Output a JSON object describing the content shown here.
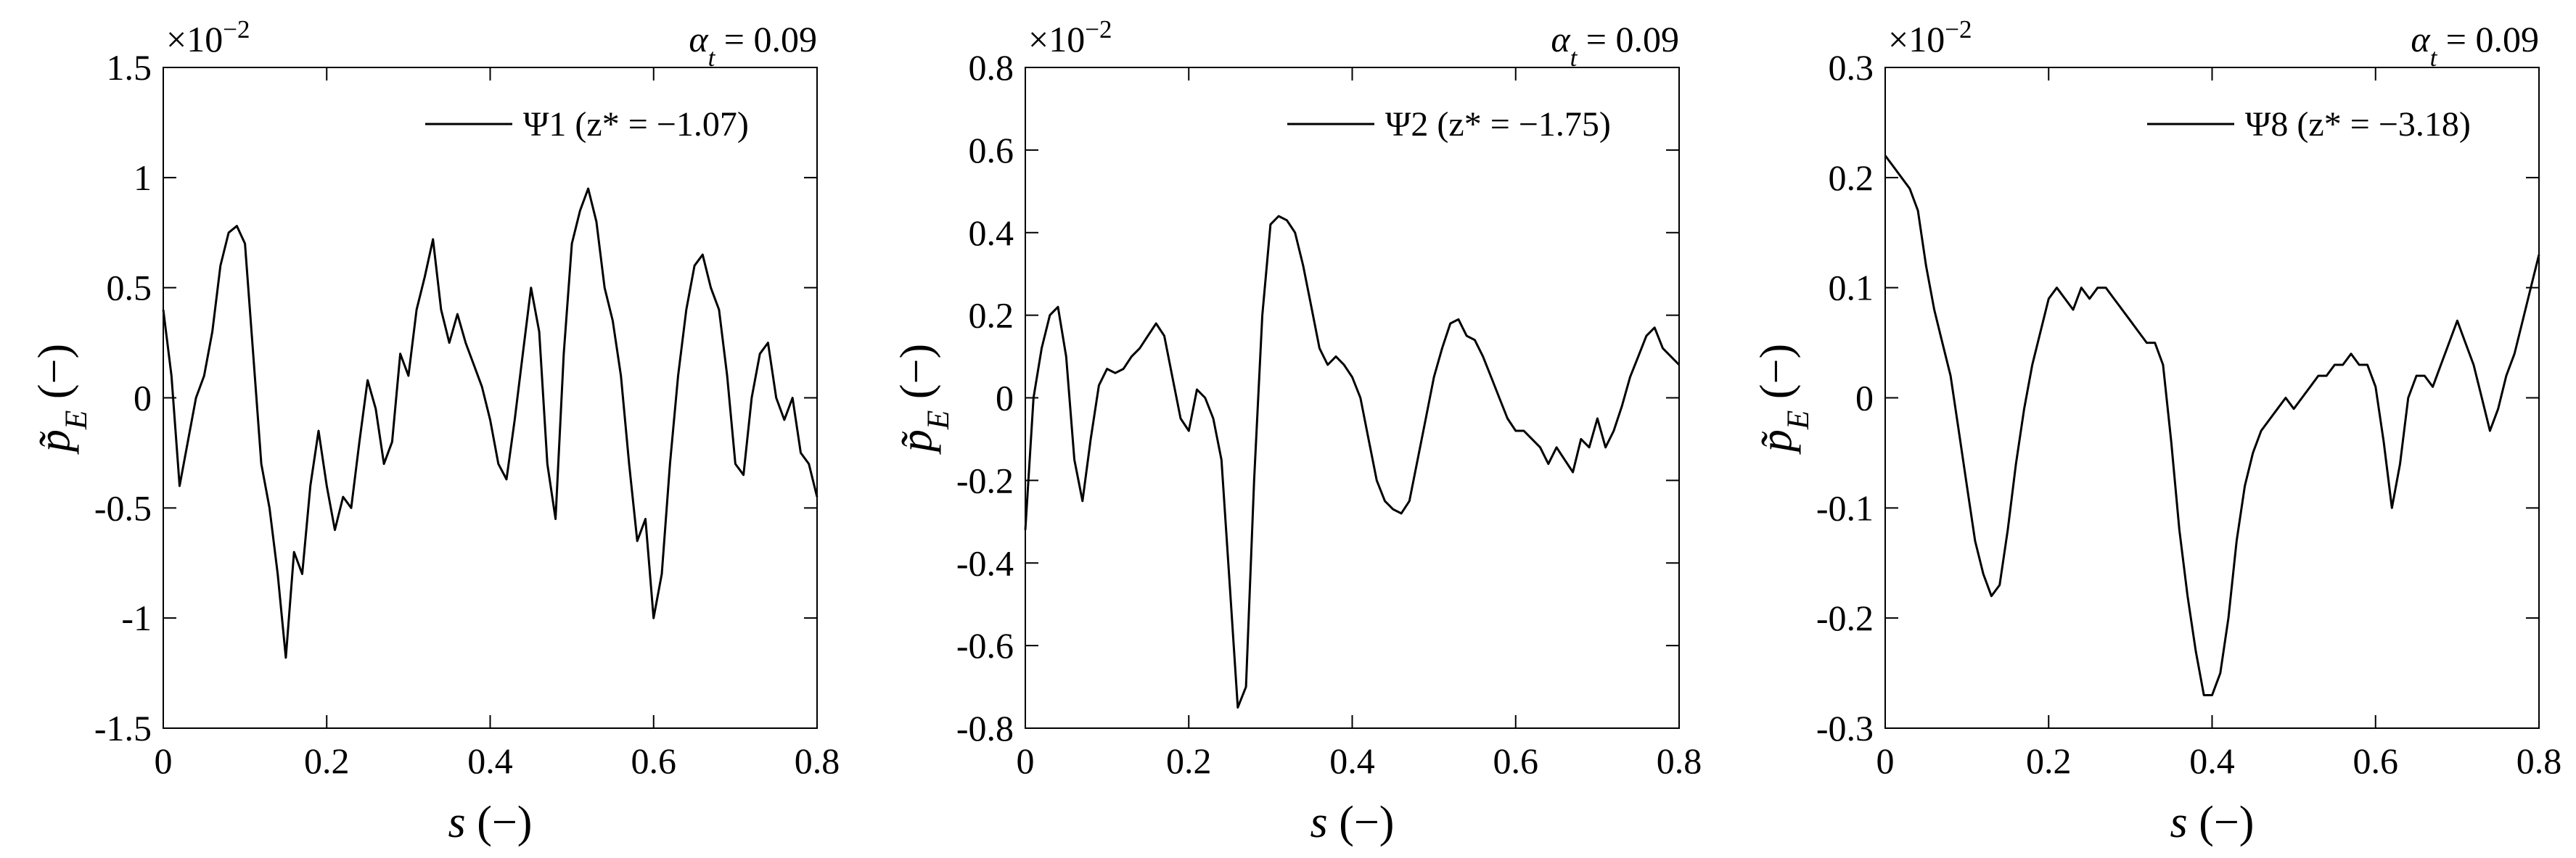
{
  "chart_data": [
    {
      "type": "line",
      "axis_multiplier": {
        "base": "×10",
        "exponent": "−2"
      },
      "annotation": {
        "symbol": "α",
        "subscript": "t",
        "text": " = 0.09"
      },
      "xlabel": {
        "symbol": "s",
        "text": " (−)"
      },
      "ylabel": {
        "symbol": "p̃",
        "subscript": "E",
        "text": " (−)"
      },
      "xlim": [
        0,
        0.8
      ],
      "xticks": [
        0,
        0.2,
        0.4,
        0.6,
        0.8
      ],
      "ylim": [
        -1.5,
        1.5
      ],
      "yticks": [
        -1.5,
        -1,
        -0.5,
        0,
        0.5,
        1,
        1.5
      ],
      "x": [
        0,
        0.01,
        0.02,
        0.03,
        0.04,
        0.05,
        0.06,
        0.07,
        0.08,
        0.09,
        0.1,
        0.11,
        0.12,
        0.13,
        0.14,
        0.15,
        0.16,
        0.17,
        0.18,
        0.19,
        0.2,
        0.21,
        0.22,
        0.23,
        0.24,
        0.25,
        0.26,
        0.27,
        0.28,
        0.29,
        0.3,
        0.31,
        0.32,
        0.33,
        0.34,
        0.35,
        0.36,
        0.37,
        0.38,
        0.39,
        0.4,
        0.41,
        0.42,
        0.43,
        0.44,
        0.45,
        0.46,
        0.47,
        0.48,
        0.49,
        0.5,
        0.51,
        0.52,
        0.53,
        0.54,
        0.55,
        0.56,
        0.57,
        0.58,
        0.59,
        0.6,
        0.61,
        0.62,
        0.63,
        0.64,
        0.65,
        0.66,
        0.67,
        0.68,
        0.69,
        0.7,
        0.71,
        0.72,
        0.73,
        0.74,
        0.75,
        0.76,
        0.77,
        0.78,
        0.79,
        0.8
      ],
      "series": [
        {
          "name": "Ψ1 (z* = −1.07)",
          "color": "#000000",
          "values": [
            0.4,
            0.1,
            -0.4,
            -0.2,
            0,
            0.1,
            0.3,
            0.6,
            0.75,
            0.78,
            0.7,
            0.2,
            -0.3,
            -0.5,
            -0.8,
            -1.18,
            -0.7,
            -0.8,
            -0.4,
            -0.15,
            -0.4,
            -0.6,
            -0.45,
            -0.5,
            -0.2,
            0.08,
            -0.05,
            -0.3,
            -0.2,
            0.2,
            0.1,
            0.4,
            0.55,
            0.72,
            0.4,
            0.25,
            0.38,
            0.25,
            0.15,
            0.05,
            -0.1,
            -0.3,
            -0.37,
            -0.1,
            0.2,
            0.5,
            0.3,
            -0.3,
            -0.55,
            0.2,
            0.7,
            0.85,
            0.95,
            0.8,
            0.5,
            0.35,
            0.1,
            -0.3,
            -0.65,
            -0.55,
            -1.0,
            -0.8,
            -0.3,
            0.1,
            0.4,
            0.6,
            0.65,
            0.5,
            0.4,
            0.1,
            -0.3,
            -0.35,
            0,
            0.2,
            0.25,
            0,
            -0.1,
            0,
            -0.25,
            -0.3,
            -0.45
          ]
        }
      ]
    },
    {
      "type": "line",
      "axis_multiplier": {
        "base": "×10",
        "exponent": "−2"
      },
      "annotation": {
        "symbol": "α",
        "subscript": "t",
        "text": " = 0.09"
      },
      "xlabel": {
        "symbol": "s",
        "text": " (−)"
      },
      "ylabel": {
        "symbol": "p̃",
        "subscript": "E",
        "text": " (−)"
      },
      "xlim": [
        0,
        0.8
      ],
      "xticks": [
        0,
        0.2,
        0.4,
        0.6,
        0.8
      ],
      "ylim": [
        -0.8,
        0.8
      ],
      "yticks": [
        -0.8,
        -0.6,
        -0.4,
        -0.2,
        0,
        0.2,
        0.4,
        0.6,
        0.8
      ],
      "x": [
        0,
        0.01,
        0.02,
        0.03,
        0.04,
        0.05,
        0.06,
        0.07,
        0.08,
        0.09,
        0.1,
        0.11,
        0.12,
        0.13,
        0.14,
        0.15,
        0.16,
        0.17,
        0.18,
        0.19,
        0.2,
        0.21,
        0.22,
        0.23,
        0.24,
        0.25,
        0.26,
        0.27,
        0.28,
        0.29,
        0.3,
        0.31,
        0.32,
        0.33,
        0.34,
        0.35,
        0.36,
        0.37,
        0.38,
        0.39,
        0.4,
        0.41,
        0.42,
        0.43,
        0.44,
        0.45,
        0.46,
        0.47,
        0.48,
        0.49,
        0.5,
        0.51,
        0.52,
        0.53,
        0.54,
        0.55,
        0.56,
        0.57,
        0.58,
        0.59,
        0.6,
        0.61,
        0.62,
        0.63,
        0.64,
        0.65,
        0.66,
        0.67,
        0.68,
        0.69,
        0.7,
        0.71,
        0.72,
        0.73,
        0.74,
        0.75,
        0.76,
        0.77,
        0.78,
        0.79,
        0.8
      ],
      "series": [
        {
          "name": "Ψ2 (z* = −1.75)",
          "color": "#000000",
          "values": [
            -0.32,
            0,
            0.12,
            0.2,
            0.22,
            0.1,
            -0.15,
            -0.25,
            -0.1,
            0.03,
            0.07,
            0.06,
            0.07,
            0.1,
            0.12,
            0.15,
            0.18,
            0.15,
            0.05,
            -0.05,
            -0.08,
            0.02,
            0,
            -0.05,
            -0.15,
            -0.45,
            -0.75,
            -0.7,
            -0.2,
            0.2,
            0.42,
            0.44,
            0.43,
            0.4,
            0.32,
            0.22,
            0.12,
            0.08,
            0.1,
            0.08,
            0.05,
            0,
            -0.1,
            -0.2,
            -0.25,
            -0.27,
            -0.28,
            -0.25,
            -0.15,
            -0.05,
            0.05,
            0.12,
            0.18,
            0.19,
            0.15,
            0.14,
            0.1,
            0.05,
            0,
            -0.05,
            -0.08,
            -0.08,
            -0.1,
            -0.12,
            -0.16,
            -0.12,
            -0.15,
            -0.18,
            -0.1,
            -0.12,
            -0.05,
            -0.12,
            -0.08,
            -0.02,
            0.05,
            0.1,
            0.15,
            0.17,
            0.12,
            0.1,
            0.08
          ]
        }
      ]
    },
    {
      "type": "line",
      "axis_multiplier": {
        "base": "×10",
        "exponent": "−2"
      },
      "annotation": {
        "symbol": "α",
        "subscript": "t",
        "text": " = 0.09"
      },
      "xlabel": {
        "symbol": "s",
        "text": " (−)"
      },
      "ylabel": {
        "symbol": "p̃",
        "subscript": "E",
        "text": " (−)"
      },
      "xlim": [
        0,
        0.8
      ],
      "xticks": [
        0,
        0.2,
        0.4,
        0.6,
        0.8
      ],
      "ylim": [
        -0.3,
        0.3
      ],
      "yticks": [
        -0.3,
        -0.2,
        -0.1,
        0,
        0.1,
        0.2,
        0.3
      ],
      "x": [
        0,
        0.01,
        0.02,
        0.03,
        0.04,
        0.05,
        0.06,
        0.07,
        0.08,
        0.09,
        0.1,
        0.11,
        0.12,
        0.13,
        0.14,
        0.15,
        0.16,
        0.17,
        0.18,
        0.19,
        0.2,
        0.21,
        0.22,
        0.23,
        0.24,
        0.25,
        0.26,
        0.27,
        0.28,
        0.29,
        0.3,
        0.31,
        0.32,
        0.33,
        0.34,
        0.35,
        0.36,
        0.37,
        0.38,
        0.39,
        0.4,
        0.41,
        0.42,
        0.43,
        0.44,
        0.45,
        0.46,
        0.47,
        0.48,
        0.49,
        0.5,
        0.51,
        0.52,
        0.53,
        0.54,
        0.55,
        0.56,
        0.57,
        0.58,
        0.59,
        0.6,
        0.61,
        0.62,
        0.63,
        0.64,
        0.65,
        0.66,
        0.67,
        0.68,
        0.69,
        0.7,
        0.71,
        0.72,
        0.73,
        0.74,
        0.75,
        0.76,
        0.77,
        0.78,
        0.79,
        0.8
      ],
      "series": [
        {
          "name": "Ψ8 (z* = −3.18)",
          "color": "#000000",
          "values": [
            0.22,
            0.21,
            0.2,
            0.19,
            0.17,
            0.12,
            0.08,
            0.05,
            0.02,
            -0.03,
            -0.08,
            -0.13,
            -0.16,
            -0.18,
            -0.17,
            -0.12,
            -0.06,
            -0.01,
            0.03,
            0.06,
            0.09,
            0.1,
            0.09,
            0.08,
            0.1,
            0.09,
            0.1,
            0.1,
            0.09,
            0.08,
            0.07,
            0.06,
            0.05,
            0.05,
            0.03,
            -0.04,
            -0.12,
            -0.18,
            -0.23,
            -0.27,
            -0.27,
            -0.25,
            -0.2,
            -0.13,
            -0.08,
            -0.05,
            -0.03,
            -0.02,
            -0.01,
            0,
            -0.01,
            0,
            0.01,
            0.02,
            0.02,
            0.03,
            0.03,
            0.04,
            0.03,
            0.03,
            0.01,
            -0.04,
            -0.1,
            -0.06,
            0,
            0.02,
            0.02,
            0.01,
            0.03,
            0.05,
            0.07,
            0.05,
            0.03,
            0,
            -0.03,
            -0.01,
            0.02,
            0.04,
            0.07,
            0.1,
            0.13
          ]
        }
      ]
    }
  ]
}
